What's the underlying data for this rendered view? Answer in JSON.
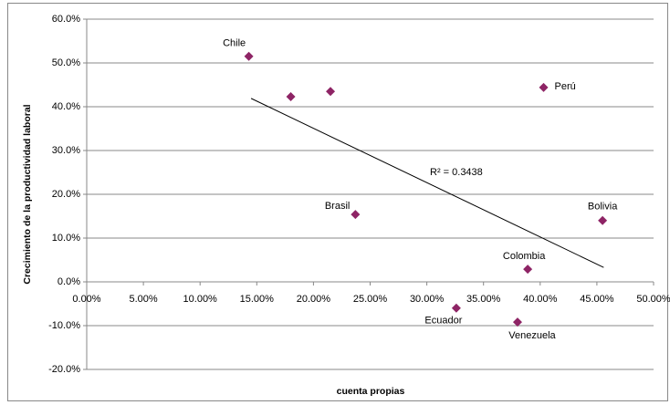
{
  "chart_data": {
    "type": "scatter",
    "x_label": "cuenta propias",
    "y_label": "Crecimiento de la productividad laboral",
    "color": "#8e2465",
    "grid": true,
    "x": [
      14.3,
      18.0,
      21.5,
      40.3,
      23.7,
      45.5,
      38.9,
      32.6,
      38.0
    ],
    "values": [
      51.5,
      42.3,
      43.5,
      44.4,
      15.4,
      14.0,
      2.9,
      -6.0,
      -9.2
    ],
    "labels": [
      "Chile",
      null,
      null,
      "Perú",
      "Brasil",
      "Bolivia",
      "Colombia",
      "Ecuador",
      "Venezuela"
    ],
    "trendline": {
      "x": [
        14.5,
        45.6
      ],
      "y": [
        41.9,
        3.3
      ],
      "annotation": "R² = 0.3438"
    },
    "xlim": [
      0,
      50
    ],
    "ylim": [
      -20,
      60
    ],
    "xticks": [
      {
        "value": 0,
        "label": "0.00%"
      },
      {
        "value": 5,
        "label": "5.00%"
      },
      {
        "value": 10,
        "label": "10.00%"
      },
      {
        "value": 15,
        "label": "15.00%"
      },
      {
        "value": 20,
        "label": "20.00%"
      },
      {
        "value": 25,
        "label": "25.00%"
      },
      {
        "value": 30,
        "label": "30.00%"
      },
      {
        "value": 35,
        "label": "35.00%"
      },
      {
        "value": 40,
        "label": "40.00%"
      },
      {
        "value": 45,
        "label": "45.00%"
      },
      {
        "value": 50,
        "label": "50.00%"
      }
    ],
    "yticks": [
      {
        "value": -20,
        "label": "-20.0%"
      },
      {
        "value": -10,
        "label": "-10.0%"
      },
      {
        "value": 0,
        "label": "0.0%"
      },
      {
        "value": 10,
        "label": "10.0%"
      },
      {
        "value": 20,
        "label": "20.0%"
      },
      {
        "value": 30,
        "label": "30.0%"
      },
      {
        "value": 40,
        "label": "40.0%"
      },
      {
        "value": 50,
        "label": "50.0%"
      },
      {
        "value": 60,
        "label": "60.0%"
      }
    ]
  }
}
